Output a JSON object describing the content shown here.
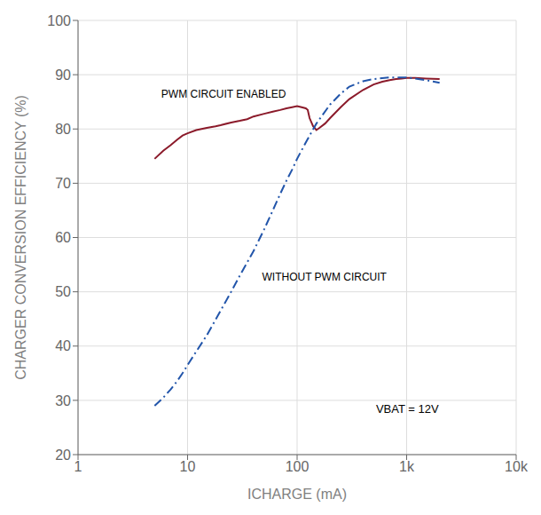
{
  "chart_data": {
    "type": "line",
    "xlabel": "ICHARGE (mA)",
    "ylabel": "CHARGER CONVERSION EFFICIENCY (%)",
    "log": "x",
    "grid": true,
    "xlim": [
      1,
      10000
    ],
    "xticks": [
      1,
      10,
      100,
      {
        "value": 1000,
        "label": "1k"
      },
      {
        "value": 10000,
        "label": "10k"
      }
    ],
    "ylim": [
      20,
      100
    ],
    "yticks": [
      20,
      30,
      40,
      50,
      60,
      70,
      80,
      90,
      100
    ],
    "annotations": [
      "VBAT = 12V"
    ],
    "series": [
      {
        "name": "PWM CIRCUIT ENABLED",
        "color": "#8b1a2a",
        "line_style": "solid",
        "x": [
          5,
          6,
          7,
          8,
          9,
          10,
          12,
          15,
          18,
          20,
          25,
          30,
          35,
          40,
          50,
          60,
          70,
          80,
          90,
          100,
          110,
          120,
          125,
          130,
          140,
          150,
          160,
          180,
          200,
          250,
          300,
          400,
          500,
          600,
          700,
          800,
          900,
          1000,
          1200,
          1500,
          2000
        ],
        "values": [
          74.5,
          76.0,
          77.0,
          78.0,
          78.8,
          79.2,
          79.8,
          80.2,
          80.5,
          80.7,
          81.2,
          81.5,
          81.8,
          82.3,
          82.8,
          83.2,
          83.5,
          83.8,
          84.0,
          84.2,
          84.0,
          83.8,
          83.5,
          82.0,
          80.5,
          79.8,
          80.2,
          81.0,
          82.0,
          84.0,
          85.5,
          87.2,
          88.2,
          88.7,
          89.0,
          89.2,
          89.3,
          89.4,
          89.4,
          89.3,
          89.2
        ]
      },
      {
        "name": "WITHOUT PWM CIRCUIT",
        "color": "#2255aa",
        "line_style": "dashdot",
        "x": [
          5,
          6,
          7,
          8,
          9,
          10,
          12,
          15,
          20,
          25,
          30,
          40,
          50,
          60,
          70,
          80,
          90,
          100,
          120,
          150,
          200,
          250,
          300,
          400,
          500,
          700,
          1000,
          1500,
          2000
        ],
        "values": [
          29.0,
          30.5,
          32.0,
          33.5,
          35.0,
          36.5,
          39.0,
          42.0,
          46.5,
          50.0,
          53.0,
          57.5,
          61.5,
          65.0,
          68.0,
          70.5,
          72.5,
          74.5,
          77.5,
          81.0,
          84.5,
          86.5,
          87.8,
          88.8,
          89.2,
          89.5,
          89.5,
          89.0,
          88.5
        ]
      }
    ]
  }
}
